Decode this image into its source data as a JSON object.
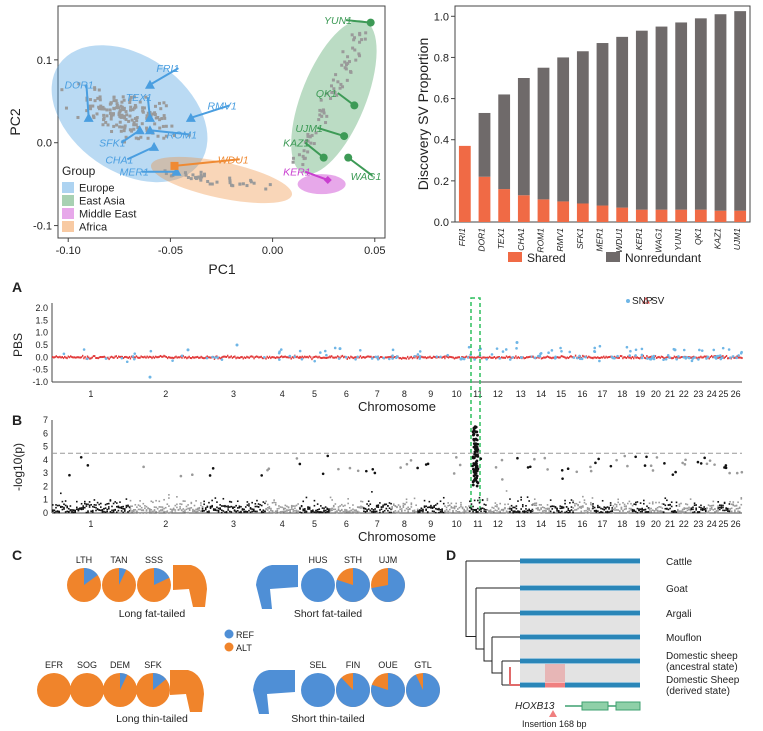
{
  "panelLabels": {
    "A": "A",
    "B": "B",
    "C": "C",
    "D": "D"
  },
  "colors": {
    "europe": "#4a9ee0",
    "eastAsia": "#3d9a56",
    "middleEast": "#c93fd0",
    "africa": "#ef8a33",
    "shared": "#f06a45",
    "nonred": "#6f6a6a",
    "snp": "#6fb6e6",
    "sv": "#e23b3b",
    "ref": "#4f8fd6",
    "alt": "#f0842b",
    "gwasDark": "#111111",
    "gwasLight": "#9a9a9a"
  },
  "pca": {
    "xlabel": "PC1",
    "ylabel": "PC2",
    "xticks": [
      "-0.10",
      "-0.05",
      "0.00",
      "0.05"
    ],
    "yticks": [
      "0.1",
      "0.0",
      "-0.1"
    ],
    "legendTitle": "Group",
    "groups": [
      "Europe",
      "East Asia",
      "Middle East",
      "Africa"
    ],
    "labels": [
      {
        "t": "DOR1",
        "g": "europe"
      },
      {
        "t": "FRI1",
        "g": "europe"
      },
      {
        "t": "TEX1",
        "g": "europe"
      },
      {
        "t": "RMV1",
        "g": "europe"
      },
      {
        "t": "SFK1",
        "g": "europe"
      },
      {
        "t": "ROM1",
        "g": "europe"
      },
      {
        "t": "CHA1",
        "g": "europe"
      },
      {
        "t": "MER1",
        "g": "europe"
      },
      {
        "t": "WDU1",
        "g": "africa"
      },
      {
        "t": "YUN1",
        "g": "eastAsia"
      },
      {
        "t": "QK1",
        "g": "eastAsia"
      },
      {
        "t": "UJM1",
        "g": "eastAsia"
      },
      {
        "t": "KAZ1",
        "g": "eastAsia"
      },
      {
        "t": "WAG1",
        "g": "eastAsia"
      },
      {
        "t": "KER1",
        "g": "middleEast"
      }
    ]
  },
  "chart_data": [
    {
      "type": "bar",
      "ylabel": "Discovery SV Proportion",
      "ylim": [
        0,
        1.05
      ],
      "yticks": [
        "0.0",
        "0.2",
        "0.4",
        "0.6",
        "0.8",
        "1.0"
      ],
      "categories": [
        "FRI1",
        "DOR1",
        "TEX1",
        "CHA1",
        "ROM1",
        "RMV1",
        "SFK1",
        "MER1",
        "WDU1",
        "KER1",
        "WAG1",
        "YUN1",
        "QK1",
        "KAZ1",
        "UJM1"
      ],
      "series": [
        {
          "name": "Shared",
          "values": [
            0.37,
            0.22,
            0.16,
            0.13,
            0.11,
            0.1,
            0.09,
            0.08,
            0.07,
            0.06,
            0.06,
            0.06,
            0.06,
            0.055,
            0.055
          ]
        },
        {
          "name": "Nonredundant",
          "values": [
            0.0,
            0.31,
            0.46,
            0.57,
            0.64,
            0.7,
            0.74,
            0.79,
            0.83,
            0.87,
            0.89,
            0.91,
            0.93,
            0.955,
            0.97
          ]
        }
      ],
      "legend": "bottom"
    },
    {
      "type": "scatter",
      "ylabel": "PBS",
      "xlabel": "Chromosome",
      "yticks": [
        "2.0",
        "1.5",
        "1.0",
        "0.5",
        "0.0",
        "-0.5",
        "-1.0"
      ],
      "ylim": [
        -1,
        2.2
      ],
      "chromosomes": [
        "1",
        "2",
        "3",
        "4",
        "5",
        "6",
        "7",
        "8",
        "9",
        "10",
        "11",
        "12",
        "13",
        "14",
        "15",
        "16",
        "17",
        "18",
        "19",
        "20",
        "21",
        "22",
        "23",
        "24",
        "25",
        "26"
      ],
      "series": [
        {
          "name": "SNP"
        },
        {
          "name": "SV"
        }
      ]
    },
    {
      "type": "scatter",
      "ylabel": "-log10(p)",
      "xlabel": "Chromosome",
      "yticks": [
        "7",
        "6",
        "5",
        "4",
        "3",
        "2",
        "1",
        "0"
      ],
      "ylim": [
        0,
        7
      ],
      "threshold": 4.5,
      "chromosomes": [
        "1",
        "2",
        "3",
        "4",
        "5",
        "6",
        "7",
        "8",
        "9",
        "10",
        "11",
        "12",
        "13",
        "14",
        "15",
        "16",
        "17",
        "18",
        "19",
        "20",
        "21",
        "22",
        "23",
        "24",
        "25",
        "26"
      ]
    }
  ],
  "pies": {
    "rows": [
      {
        "left": [
          {
            "n": "LTH",
            "alt": 0.85
          },
          {
            "n": "TAN",
            "alt": 0.93
          },
          {
            "n": "SSS",
            "alt": 0.82
          }
        ],
        "leftCaption": "Long fat-tailed",
        "right": [
          {
            "n": "HUS",
            "alt": 0
          },
          {
            "n": "STH",
            "alt": 0.2
          },
          {
            "n": "UJM",
            "alt": 0.28
          }
        ],
        "rightCaption": "Short fat-tailed"
      },
      {
        "left": [
          {
            "n": "EFR",
            "alt": 1
          },
          {
            "n": "SOG",
            "alt": 1
          },
          {
            "n": "DEM",
            "alt": 0.93
          },
          {
            "n": "SFK",
            "alt": 0.86
          }
        ],
        "leftCaption": "Long thin-tailed",
        "right": [
          {
            "n": "SEL",
            "alt": 0
          },
          {
            "n": "FIN",
            "alt": 0.12
          },
          {
            "n": "OUE",
            "alt": 0.2
          },
          {
            "n": "GTL",
            "alt": 0.07
          }
        ],
        "rightCaption": "Short thin-tailed"
      }
    ],
    "legend": [
      "REF",
      "ALT"
    ]
  },
  "tree": {
    "taxa": [
      "Cattle",
      "Goat",
      "Argali",
      "Mouflon",
      "Domestic sheep\n(ancestral state)",
      "Domestic Sheep\n(derived state)"
    ],
    "gene": "HOXB13",
    "insertion": "Insertion 168 bp"
  }
}
